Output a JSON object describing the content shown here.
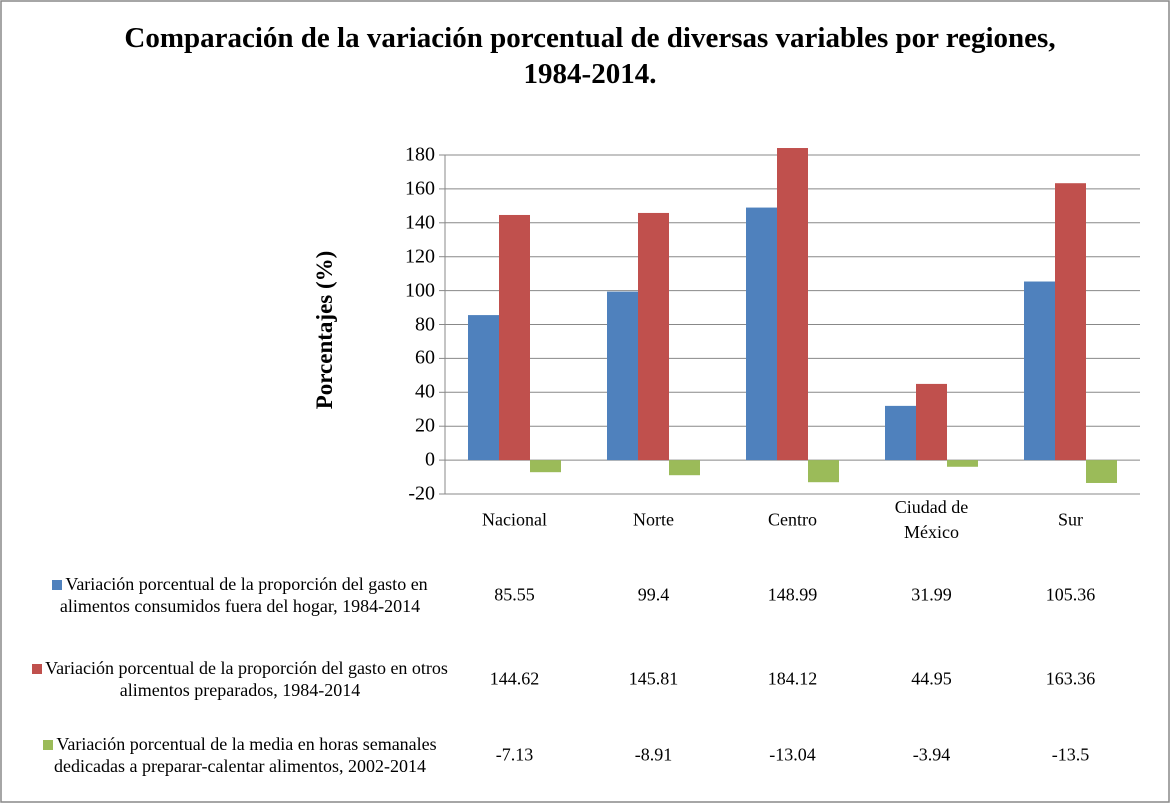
{
  "chart_data": {
    "type": "bar",
    "title": "Comparación de la variación porcentual de diversas variables por regiones, 1984-2014.",
    "y_label": "Porcentajes (%)",
    "categories": [
      "Nacional",
      "Norte",
      "Centro",
      "Ciudad de México",
      "Sur"
    ],
    "series": [
      {
        "name": "Variación porcentual de la proporción del gasto en alimentos consumidos fuera del hogar, 1984-2014",
        "color": "#4f81bd",
        "values": [
          85.55,
          99.4,
          148.99,
          31.99,
          105.36
        ]
      },
      {
        "name": "Variación porcentual de la proporción del gasto en otros alimentos preparados, 1984-2014",
        "color": "#c0504d",
        "values": [
          144.62,
          145.81,
          184.12,
          44.95,
          163.36
        ]
      },
      {
        "name": "Variación porcentual de la media en horas semanales dedicadas a preparar-calentar alimentos, 2002-2014",
        "color": "#9bbb59",
        "values": [
          -7.13,
          -8.91,
          -13.04,
          -3.94,
          -13.5
        ]
      }
    ],
    "ylim": [
      -20,
      180
    ],
    "yticks": [
      -20,
      0,
      20,
      40,
      60,
      80,
      100,
      120,
      140,
      160,
      180
    ],
    "grid": true,
    "data_table": true
  }
}
